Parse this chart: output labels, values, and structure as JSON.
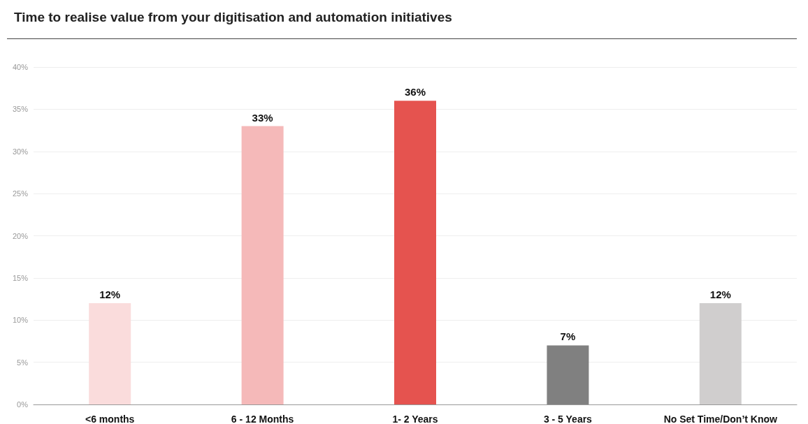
{
  "chart_data": {
    "type": "bar",
    "title": "Time to realise value from your digitisation and automation initiatives",
    "categories": [
      "<6 months",
      "6 - 12 Months",
      "1- 2 Years",
      "3 - 5 Years",
      "No Set Time/Don’t Know"
    ],
    "values": [
      12,
      33,
      36,
      7,
      12
    ],
    "colors": [
      "#fadcdc",
      "#f5b9b9",
      "#e5534f",
      "#808080",
      "#d0cece"
    ],
    "value_labels": [
      "12%",
      "33%",
      "36%",
      "7%",
      "12%"
    ],
    "ylim": [
      0,
      40
    ],
    "yticks": [
      {
        "value": 0,
        "label": "0%"
      },
      {
        "value": 5,
        "label": "5%"
      },
      {
        "value": 10,
        "label": "10%"
      },
      {
        "value": 15,
        "label": "15%"
      },
      {
        "value": 20,
        "label": "20%"
      },
      {
        "value": 25,
        "label": "25%"
      },
      {
        "value": 30,
        "label": "30%"
      },
      {
        "value": 35,
        "label": "35%"
      },
      {
        "value": 40,
        "label": "40%"
      }
    ],
    "grid": "y"
  }
}
